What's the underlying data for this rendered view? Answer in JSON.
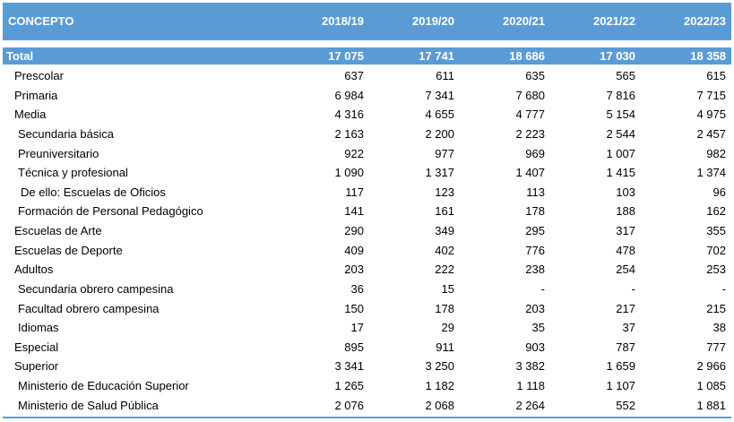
{
  "header": {
    "concept": "CONCEPTO",
    "years": [
      "2018/19",
      "2019/20",
      "2020/21",
      "2021/22",
      "2022/23"
    ]
  },
  "total": {
    "label": "Total",
    "values": [
      "17 075",
      "17 741",
      "18 686",
      "17 030",
      "18 358"
    ]
  },
  "rows": [
    {
      "label": "Prescolar",
      "indent": 1,
      "values": [
        "637",
        "611",
        "635",
        "565",
        "615"
      ]
    },
    {
      "label": "Primaria",
      "indent": 1,
      "values": [
        "6 984",
        "7 341",
        "7 680",
        "7 816",
        "7 715"
      ]
    },
    {
      "label": "Media",
      "indent": 1,
      "values": [
        "4 316",
        "4 655",
        "4 777",
        "5 154",
        "4 975"
      ]
    },
    {
      "label": "Secundaria básica",
      "indent": 2,
      "values": [
        "2 163",
        "2 200",
        "2 223",
        "2 544",
        "2 457"
      ]
    },
    {
      "label": "Preuniversitario",
      "indent": 2,
      "values": [
        "922",
        "977",
        "969",
        "1 007",
        "982"
      ]
    },
    {
      "label": "Técnica y profesional",
      "indent": 2,
      "values": [
        "1 090",
        "1 317",
        "1 407",
        "1 415",
        "1 374"
      ]
    },
    {
      "label": "De ello:  Escuelas de Oficios",
      "indent": 3,
      "values": [
        "117",
        "123",
        "113",
        "103",
        "96"
      ]
    },
    {
      "label": "Formación de Personal Pedagógico",
      "indent": 2,
      "values": [
        "141",
        "161",
        "178",
        "188",
        "162"
      ]
    },
    {
      "label": "Escuelas de Arte",
      "indent": 1,
      "values": [
        "290",
        "349",
        "295",
        "317",
        "355"
      ]
    },
    {
      "label": "Escuelas de Deporte",
      "indent": 1,
      "values": [
        "409",
        "402",
        "776",
        "478",
        "702"
      ]
    },
    {
      "label": "Adultos",
      "indent": 1,
      "values": [
        "203",
        "222",
        "238",
        "254",
        "253"
      ]
    },
    {
      "label": "Secundaria obrero campesina",
      "indent": 2,
      "values": [
        "36",
        "15",
        "-",
        "-",
        "-"
      ]
    },
    {
      "label": "Facultad  obrero campesina",
      "indent": 2,
      "values": [
        "150",
        "178",
        "203",
        "217",
        "215"
      ]
    },
    {
      "label": "Idiomas",
      "indent": 2,
      "values": [
        "17",
        "29",
        "35",
        "37",
        "38"
      ]
    },
    {
      "label": "Especial",
      "indent": 1,
      "values": [
        "895",
        "911",
        "903",
        "787",
        "777"
      ]
    },
    {
      "label": "Superior",
      "indent": 1,
      "values": [
        "3 341",
        "3 250",
        "3 382",
        "1 659",
        "2 966"
      ]
    },
    {
      "label": "Ministerio de Educación Superior",
      "indent": 2,
      "values": [
        "1 265",
        "1 182",
        "1 118",
        "1 107",
        "1 085"
      ]
    },
    {
      "label": "Ministerio de Salud Pública",
      "indent": 2,
      "values": [
        "2 076",
        "2 068",
        "2 264",
        "552",
        "1 881"
      ]
    }
  ],
  "colors": {
    "header_bg": "#5b9bd5",
    "header_text": "#ffffff",
    "body_text": "#000000"
  }
}
